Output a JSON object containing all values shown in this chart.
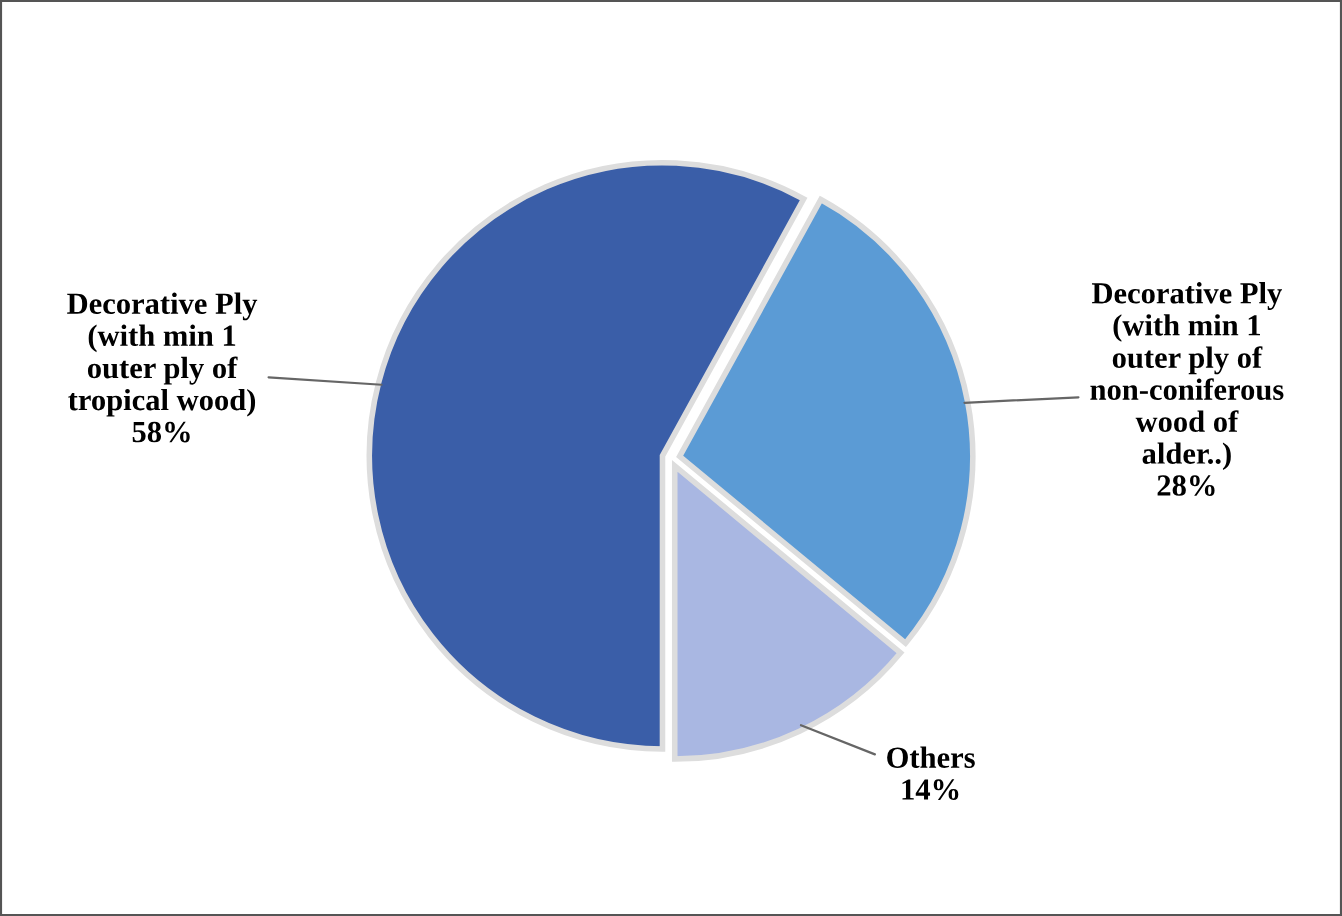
{
  "chart_data": {
    "type": "pie",
    "categories": [
      "Decorative Ply\n(with min 1\nouter ply of\ntropical wood)",
      "Decorative Ply\n(with min 1\nouter ply of\nnon-coniferous\nwood of\nalder..)",
      "Others"
    ],
    "values": [
      58,
      28,
      14
    ],
    "value_labels": [
      "58%",
      "28%",
      "14%"
    ],
    "colors": [
      "#3a5ea8",
      "#5b9bd5",
      "#a9b7e2"
    ]
  }
}
